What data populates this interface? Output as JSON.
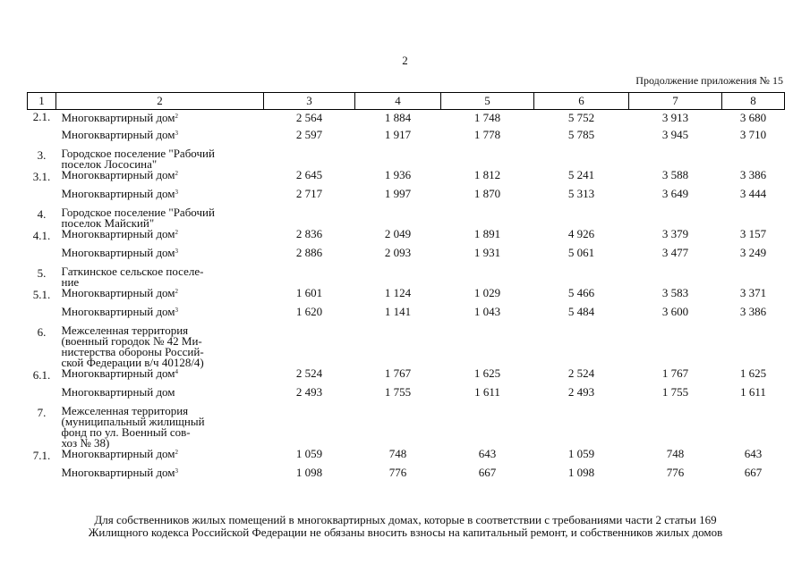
{
  "page_number": "2",
  "caption": "Продолжение приложения № 15",
  "columns": [
    "1",
    "2",
    "3",
    "4",
    "5",
    "6",
    "7",
    "8"
  ],
  "rows": [
    {
      "kind": "item",
      "num": "2.1.",
      "name": "Многоквартирный дом",
      "sup": "2",
      "values": [
        "2 564",
        "1 884",
        "1 748",
        "5 752",
        "3 913",
        "3 680"
      ]
    },
    {
      "kind": "item",
      "num": "",
      "name": "Многоквартирный дом",
      "sup": "3",
      "values": [
        "2 597",
        "1 917",
        "1 778",
        "5 785",
        "3 945",
        "3 710"
      ]
    },
    {
      "kind": "section",
      "num": "3.",
      "lines": [
        "Городское поселение \"Рабочий",
        "поселок Лососина\""
      ]
    },
    {
      "kind": "item",
      "num": "3.1.",
      "name": "Многоквартирный дом",
      "sup": "2",
      "values": [
        "2 645",
        "1 936",
        "1 812",
        "5 241",
        "3 588",
        "3 386"
      ]
    },
    {
      "kind": "item",
      "num": "",
      "name": "Многоквартирный дом",
      "sup": "3",
      "values": [
        "2 717",
        "1 997",
        "1 870",
        "5 313",
        "3 649",
        "3 444"
      ]
    },
    {
      "kind": "section",
      "num": "4.",
      "lines": [
        "Городское поселение \"Рабочий",
        "поселок Майский\""
      ]
    },
    {
      "kind": "item",
      "num": "4.1.",
      "name": "Многоквартирный дом",
      "sup": "2",
      "values": [
        "2 836",
        "2 049",
        "1 891",
        "4 926",
        "3 379",
        "3 157"
      ]
    },
    {
      "kind": "item",
      "num": "",
      "name": "Многоквартирный дом",
      "sup": "3",
      "values": [
        "2 886",
        "2 093",
        "1 931",
        "5 061",
        "3 477",
        "3 249"
      ]
    },
    {
      "kind": "section",
      "num": "5.",
      "lines": [
        "Гаткинское сельское поселе-",
        "ние"
      ]
    },
    {
      "kind": "item",
      "num": "5.1.",
      "name": "Многоквартирный дом",
      "sup": "2",
      "values": [
        "1 601",
        "1 124",
        "1 029",
        "5 466",
        "3 583",
        "3 371"
      ]
    },
    {
      "kind": "item",
      "num": "",
      "name": "Многоквартирный дом",
      "sup": "3",
      "values": [
        "1 620",
        "1 141",
        "1 043",
        "5 484",
        "3 600",
        "3 386"
      ]
    },
    {
      "kind": "section",
      "num": "6.",
      "lines": [
        "Межселенная территория",
        "(военный городок № 42 Ми-",
        "нистерства обороны Россий-",
        "ской Федерации в/ч 40128/4)"
      ]
    },
    {
      "kind": "item",
      "num": "6.1.",
      "name": "Многоквартирный дом",
      "sup": "4",
      "values": [
        "2 524",
        "1 767",
        "1 625",
        "2 524",
        "1 767",
        "1 625"
      ]
    },
    {
      "kind": "item",
      "num": "",
      "name": "Многоквартирный дом",
      "sup": "",
      "values": [
        "2 493",
        "1 755",
        "1 611",
        "2 493",
        "1 755",
        "1 611"
      ]
    },
    {
      "kind": "section",
      "num": "7.",
      "lines": [
        "Межселенная территория",
        "(муниципальный жилищный",
        "фонд по ул. Военный сов-",
        "хоз № 38)"
      ]
    },
    {
      "kind": "item",
      "num": "7.1.",
      "name": "Многоквартирный дом",
      "sup": "2",
      "values": [
        "1 059",
        "748",
        "643",
        "1 059",
        "748",
        "643"
      ]
    },
    {
      "kind": "item",
      "num": "",
      "name": "Многоквартирный дом",
      "sup": "3",
      "values": [
        "1 098",
        "776",
        "667",
        "1 098",
        "776",
        "667"
      ]
    }
  ],
  "footnote_lines": [
    "Для собственников жилых помещений в многоквартирных домах, которые в соответствии с требованиями части 2 статьи 169",
    "Жилищного кодекса Российской Федерации не обязаны вносить взносы на капитальный ремонт, и собственников жилых домов"
  ]
}
